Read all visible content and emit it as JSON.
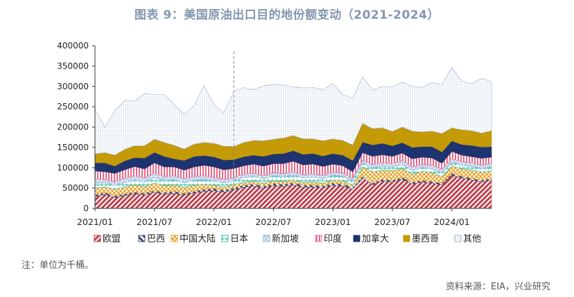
{
  "chart_data": {
    "type": "area",
    "title": "图表 9：美国原油出口目的地份额变动（2021-2024）",
    "stacked": true,
    "ylim": [
      0,
      400000
    ],
    "yticks": [
      0,
      50000,
      100000,
      150000,
      200000,
      250000,
      300000,
      350000,
      400000
    ],
    "xtick_labels": [
      "2021/01",
      "2021/07",
      "2022/01",
      "2022/07",
      "2023/01",
      "2023/07",
      "2024/01"
    ],
    "x_start": "2021/01",
    "x_end": "2024/05",
    "reference_line": "2022/03",
    "legend_position": "bottom",
    "series": [
      {
        "name": "欧盟",
        "color": "#c0404a",
        "pattern": "diag",
        "values": [
          28000,
          35000,
          27000,
          32000,
          36000,
          33000,
          40000,
          35000,
          37000,
          33000,
          38000,
          42000,
          44000,
          40000,
          45000,
          52000,
          55000,
          50000,
          56000,
          54000,
          58000,
          52000,
          53000,
          50000,
          57000,
          55000,
          47000,
          75000,
          58000,
          68000,
          65000,
          72000,
          60000,
          65000,
          62000,
          58000,
          82000,
          75000,
          70000,
          65000,
          70000
        ]
      },
      {
        "name": "巴西",
        "color": "#3a4a7a",
        "pattern": "diag2",
        "values": [
          5000,
          4000,
          4000,
          4000,
          4000,
          4000,
          4000,
          4000,
          5000,
          4000,
          4000,
          5000,
          5000,
          5000,
          5000,
          5000,
          5000,
          5000,
          5000,
          5000,
          5000,
          5000,
          5000,
          5000,
          5000,
          5000,
          4000,
          5000,
          4000,
          4000,
          4000,
          4000,
          4000,
          4000,
          4000,
          4000,
          4000,
          4000,
          4000,
          4000,
          4000
        ]
      },
      {
        "name": "中国大陆",
        "color": "#e8a020",
        "pattern": "cross",
        "values": [
          17000,
          14000,
          16000,
          17000,
          18000,
          17000,
          18000,
          17000,
          16000,
          15000,
          15000,
          12000,
          8000,
          8000,
          8000,
          7000,
          7000,
          7000,
          7000,
          7000,
          7000,
          7000,
          7000,
          7000,
          7000,
          8000,
          6000,
          22000,
          28000,
          22000,
          24000,
          22000,
          20000,
          22000,
          22000,
          16000,
          18000,
          18000,
          20000,
          20000,
          18000
        ]
      },
      {
        "name": "日本",
        "color": "#30c0a8",
        "pattern": "tick",
        "values": [
          12000,
          10000,
          9000,
          11000,
          11000,
          11000,
          14000,
          12000,
          12000,
          11000,
          12000,
          11000,
          11000,
          10000,
          10000,
          12000,
          12000,
          11000,
          12000,
          12000,
          12000,
          11000,
          12000,
          11000,
          12000,
          11000,
          11000,
          9000,
          9000,
          9000,
          9000,
          9000,
          9000,
          9000,
          9000,
          9000,
          9000,
          9000,
          9000,
          9000,
          9000
        ]
      },
      {
        "name": "新加坡",
        "color": "#8eaad6",
        "pattern": "grid",
        "values": [
          10000,
          8000,
          10000,
          10000,
          11000,
          10000,
          11000,
          10000,
          10000,
          10000,
          10000,
          10000,
          8000,
          8000,
          8000,
          8000,
          8000,
          7000,
          8000,
          8000,
          8000,
          8000,
          8000,
          8000,
          8000,
          8000,
          6000,
          8000,
          9000,
          9000,
          8000,
          11000,
          9000,
          8000,
          9000,
          9000,
          9000,
          9000,
          9000,
          9000,
          9000
        ]
      },
      {
        "name": "印度",
        "color": "#e86a8a",
        "pattern": "vert",
        "values": [
          20000,
          19000,
          20000,
          21000,
          23000,
          22000,
          25000,
          24000,
          22000,
          21000,
          23000,
          26000,
          26000,
          24000,
          22000,
          21000,
          22000,
          24000,
          22000,
          24000,
          26000,
          24000,
          24000,
          22000,
          20000,
          18000,
          16000,
          18000,
          20000,
          20000,
          18000,
          18000,
          20000,
          18000,
          18000,
          15000,
          18000,
          16000,
          15000,
          16000,
          16000
        ]
      },
      {
        "name": "加拿大",
        "color": "#1e3470",
        "pattern": "solid",
        "values": [
          20000,
          22000,
          18000,
          22000,
          22000,
          27000,
          26000,
          26000,
          20000,
          24000,
          26000,
          24000,
          25000,
          24000,
          22000,
          22000,
          22000,
          24000,
          24000,
          25000,
          26000,
          26000,
          26000,
          26000,
          26000,
          26000,
          28000,
          26000,
          28000,
          28000,
          26000,
          26000,
          28000,
          26000,
          28000,
          28000,
          26000,
          26000,
          28000,
          28000,
          26000
        ]
      },
      {
        "name": "墨西哥",
        "color": "#c49a06",
        "pattern": "solid",
        "values": [
          22000,
          25000,
          27000,
          28000,
          29000,
          30000,
          32000,
          34000,
          33000,
          28000,
          30000,
          32000,
          33000,
          34000,
          32000,
          35000,
          36000,
          38000,
          36000,
          38000,
          37000,
          38000,
          36000,
          37000,
          36000,
          36000,
          38000,
          46000,
          40000,
          38000,
          35000,
          38000,
          40000,
          36000,
          38000,
          45000,
          32000,
          36000,
          36000,
          34000,
          39000
        ]
      },
      {
        "name": "其他",
        "color": "#9aaecc",
        "pattern": "dots",
        "values": [
          110000,
          62000,
          110000,
          120000,
          110000,
          128000,
          110000,
          118000,
          100000,
          85000,
          95000,
          140000,
          95000,
          82000,
          135000,
          135000,
          125000,
          135000,
          135000,
          130000,
          120000,
          125000,
          126000,
          126000,
          136000,
          113000,
          115000,
          115000,
          95000,
          102000,
          110000,
          110000,
          110000,
          110000,
          120000,
          120000,
          148000,
          120000,
          115000,
          135000,
          120000
        ]
      }
    ]
  },
  "note": "注：单位为千桶。",
  "source": "资料来源：EIA，兴业研究"
}
